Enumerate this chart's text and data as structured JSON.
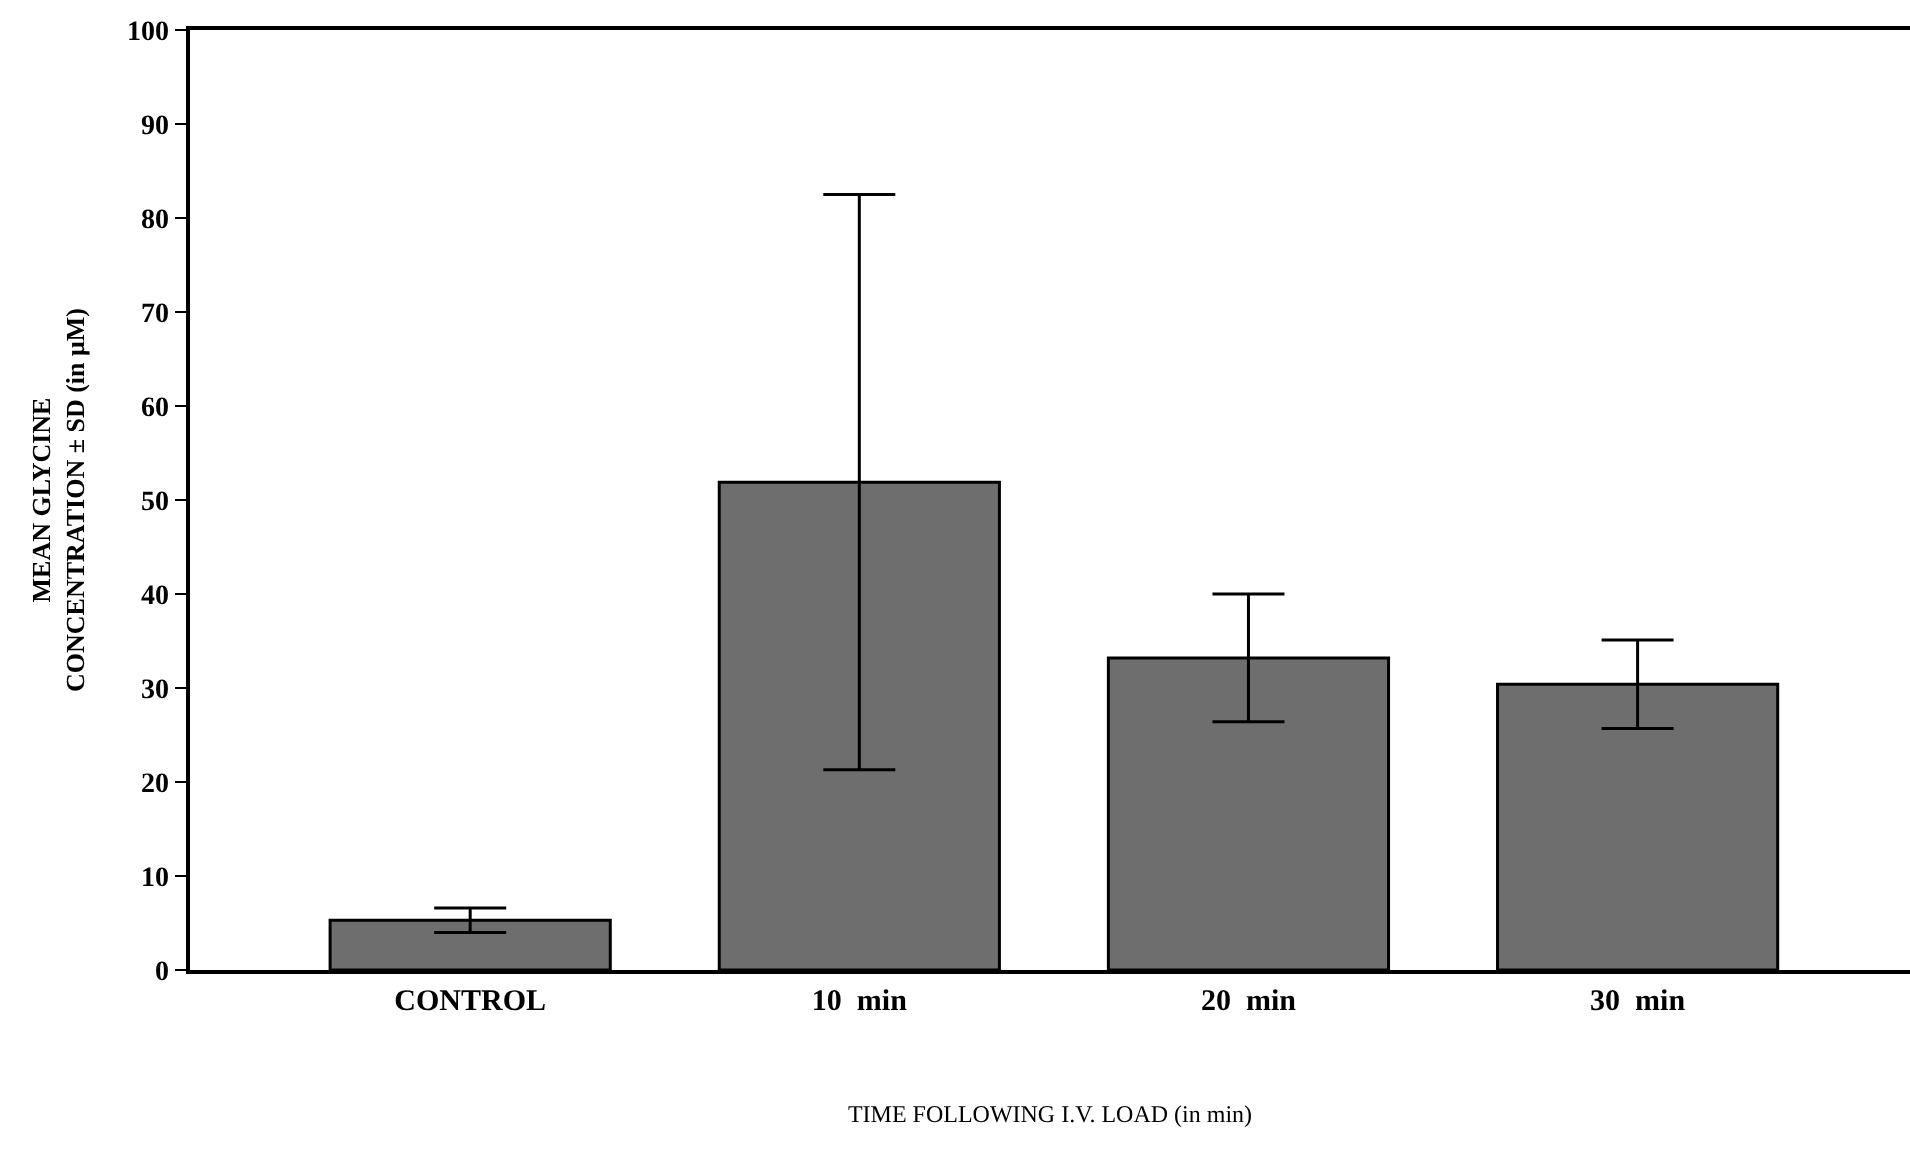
{
  "chart_data": {
    "type": "bar",
    "xlabel": "TIME FOLLOWING I.V. LOAD (in min)",
    "ylabel": "MEAN GLYCINE\nCONCENTRATION ± SD (in μM)",
    "categories": [
      "CONTROL",
      "10  min",
      "20  min",
      "30  min"
    ],
    "values": [
      5.3,
      51.9,
      33.2,
      30.4
    ],
    "errors": [
      1.3,
      30.6,
      6.8,
      4.7
    ],
    "color": "#6e6e6e",
    "ylim": [
      0,
      100
    ],
    "yticks": [
      0,
      10,
      20,
      30,
      40,
      50,
      60,
      70,
      80,
      90,
      100
    ],
    "grid": false
  }
}
